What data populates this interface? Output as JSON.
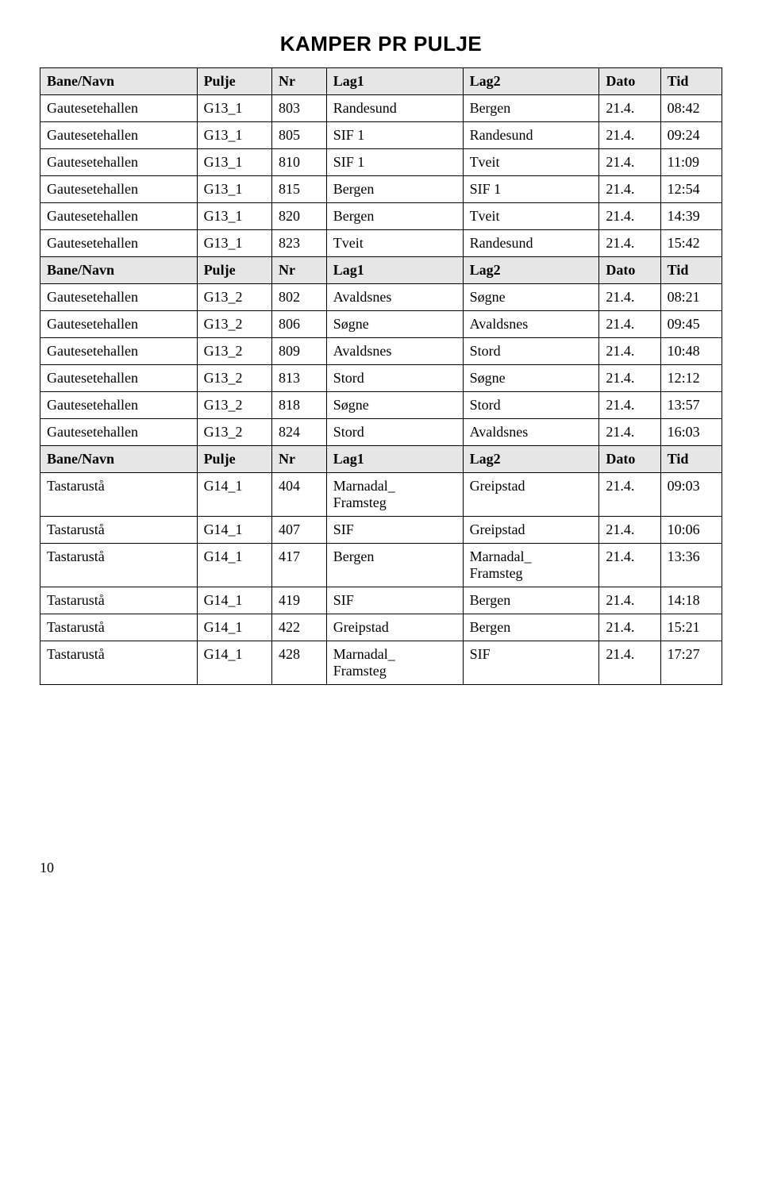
{
  "title": "KAMPER PR PULJE",
  "page_number": "10",
  "header": {
    "bane": "Bane/Navn",
    "pulje": "Pulje",
    "nr": "Nr",
    "lag1": "Lag1",
    "lag2": "Lag2",
    "dato": "Dato",
    "tid": "Tid"
  },
  "sections": [
    {
      "rows": [
        {
          "bane": "Gautesetehallen",
          "pulje": "G13_1",
          "nr": "803",
          "lag1": "Randesund",
          "lag2": "Bergen",
          "dato": "21.4.",
          "tid": "08:42"
        },
        {
          "bane": "Gautesetehallen",
          "pulje": "G13_1",
          "nr": "805",
          "lag1": "SIF 1",
          "lag2": "Randesund",
          "dato": "21.4.",
          "tid": "09:24"
        },
        {
          "bane": "Gautesetehallen",
          "pulje": "G13_1",
          "nr": "810",
          "lag1": "SIF 1",
          "lag2": "Tveit",
          "dato": "21.4.",
          "tid": "11:09"
        },
        {
          "bane": "Gautesetehallen",
          "pulje": "G13_1",
          "nr": "815",
          "lag1": "Bergen",
          "lag2": "SIF 1",
          "dato": "21.4.",
          "tid": "12:54"
        },
        {
          "bane": "Gautesetehallen",
          "pulje": "G13_1",
          "nr": "820",
          "lag1": "Bergen",
          "lag2": "Tveit",
          "dato": "21.4.",
          "tid": "14:39"
        },
        {
          "bane": "Gautesetehallen",
          "pulje": "G13_1",
          "nr": "823",
          "lag1": "Tveit",
          "lag2": "Randesund",
          "dato": "21.4.",
          "tid": "15:42"
        }
      ]
    },
    {
      "rows": [
        {
          "bane": "Gautesetehallen",
          "pulje": "G13_2",
          "nr": "802",
          "lag1": "Avaldsnes",
          "lag2": "Søgne",
          "dato": "21.4.",
          "tid": "08:21"
        },
        {
          "bane": "Gautesetehallen",
          "pulje": "G13_2",
          "nr": "806",
          "lag1": "Søgne",
          "lag2": "Avaldsnes",
          "dato": "21.4.",
          "tid": "09:45"
        },
        {
          "bane": "Gautesetehallen",
          "pulje": "G13_2",
          "nr": "809",
          "lag1": "Avaldsnes",
          "lag2": "Stord",
          "dato": "21.4.",
          "tid": "10:48"
        },
        {
          "bane": "Gautesetehallen",
          "pulje": "G13_2",
          "nr": "813",
          "lag1": "Stord",
          "lag2": "Søgne",
          "dato": "21.4.",
          "tid": "12:12"
        },
        {
          "bane": "Gautesetehallen",
          "pulje": "G13_2",
          "nr": "818",
          "lag1": "Søgne",
          "lag2": "Stord",
          "dato": "21.4.",
          "tid": "13:57"
        },
        {
          "bane": "Gautesetehallen",
          "pulje": "G13_2",
          "nr": "824",
          "lag1": "Stord",
          "lag2": "Avaldsnes",
          "dato": "21.4.",
          "tid": "16:03"
        }
      ]
    },
    {
      "rows": [
        {
          "bane": "Tastarustå",
          "pulje": "G14_1",
          "nr": "404",
          "lag1": "Marnadal_\nFramsteg",
          "lag2": "Greipstad",
          "dato": "21.4.",
          "tid": "09:03"
        },
        {
          "bane": "Tastarustå",
          "pulje": "G14_1",
          "nr": "407",
          "lag1": "SIF",
          "lag2": "Greipstad",
          "dato": "21.4.",
          "tid": "10:06"
        },
        {
          "bane": "Tastarustå",
          "pulje": "G14_1",
          "nr": "417",
          "lag1": "Bergen",
          "lag2": "Marnadal_\nFramsteg",
          "dato": "21.4.",
          "tid": "13:36"
        },
        {
          "bane": "Tastarustå",
          "pulje": "G14_1",
          "nr": "419",
          "lag1": "SIF",
          "lag2": "Bergen",
          "dato": "21.4.",
          "tid": "14:18"
        },
        {
          "bane": "Tastarustå",
          "pulje": "G14_1",
          "nr": "422",
          "lag1": "Greipstad",
          "lag2": "Bergen",
          "dato": "21.4.",
          "tid": "15:21"
        },
        {
          "bane": "Tastarustå",
          "pulje": "G14_1",
          "nr": "428",
          "lag1": "Marnadal_\nFramsteg",
          "lag2": "SIF",
          "dato": "21.4.",
          "tid": "17:27"
        }
      ]
    }
  ],
  "table_style": {
    "header_bg": "#e6e6e6",
    "border_color": "#000000",
    "font_family": "Times New Roman",
    "col_widths_pct": [
      23,
      11,
      8,
      20,
      20,
      9,
      9
    ]
  }
}
